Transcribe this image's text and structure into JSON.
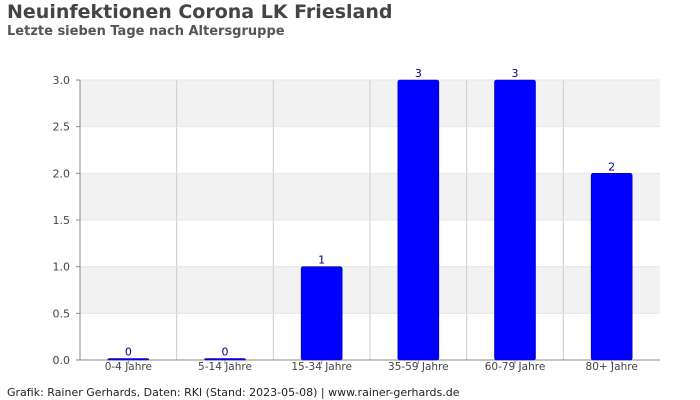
{
  "header": {
    "title": "Neuinfektionen Corona LK Friesland",
    "subtitle": "Letzte sieben Tage nach Altersgruppe"
  },
  "footer": {
    "credit": "Grafik: Rainer Gerhards, Daten: RKI (Stand: 2023-05-08) | www.rainer-gerhards.de"
  },
  "colors": {
    "bar": "#0000ff",
    "bar_outline": "#0000aa",
    "band": "#f2f2f2",
    "gridline": "#cccccc",
    "axis_text": "#444444",
    "data_label": "#000080"
  },
  "chart_data": {
    "type": "bar",
    "categories": [
      "0-4 Jahre",
      "5-14 Jahre",
      "15-34 Jahre",
      "35-59 Jahre",
      "60-79 Jahre",
      "80+ Jahre"
    ],
    "values": [
      0,
      0,
      1,
      3,
      3,
      2
    ],
    "data_labels": [
      "0",
      "0",
      "1",
      "3",
      "3",
      "2"
    ],
    "yticks": [
      0.0,
      0.5,
      1.0,
      1.5,
      2.0,
      2.5,
      3.0
    ],
    "ytick_labels": [
      "0.0",
      "0.5",
      "1.0",
      "1.5",
      "2.0",
      "2.5",
      "3.0"
    ],
    "ylim": [
      0,
      3
    ],
    "grid": true,
    "legend": "none"
  }
}
